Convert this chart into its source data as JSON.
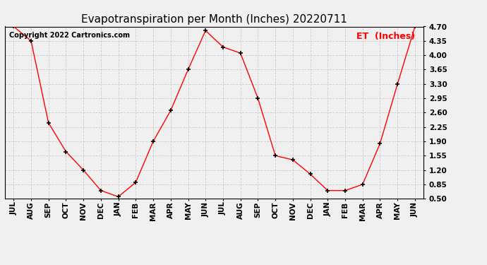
{
  "title": "Evapotranspiration per Month (Inches) 20220711",
  "legend_label": "ET  (Inches)",
  "copyright_text": "Copyright 2022 Cartronics.com",
  "x_labels": [
    "JUL",
    "AUG",
    "SEP",
    "OCT",
    "NOV",
    "DEC",
    "JAN",
    "FEB",
    "MAR",
    "APR",
    "MAY",
    "JUN",
    "JUL",
    "AUG",
    "SEP",
    "OCT",
    "NOV",
    "DEC",
    "JAN",
    "FEB",
    "MAR",
    "APR",
    "MAY",
    "JUN"
  ],
  "y_values": [
    4.7,
    4.35,
    2.35,
    1.65,
    1.2,
    0.7,
    0.55,
    0.9,
    1.9,
    2.65,
    3.65,
    4.6,
    4.2,
    4.05,
    2.95,
    1.55,
    1.45,
    1.1,
    0.7,
    0.7,
    0.85,
    1.85,
    3.3,
    4.7
  ],
  "line_color": "red",
  "marker_color": "black",
  "grid_color": "#cccccc",
  "background_color": "#f0f0f0",
  "ylim": [
    0.5,
    4.7
  ],
  "yticks": [
    0.5,
    0.85,
    1.2,
    1.55,
    1.9,
    2.25,
    2.6,
    2.95,
    3.3,
    3.65,
    4.0,
    4.35,
    4.7
  ],
  "title_fontsize": 11,
  "legend_fontsize": 9,
  "copyright_fontsize": 7,
  "tick_fontsize": 7.5
}
